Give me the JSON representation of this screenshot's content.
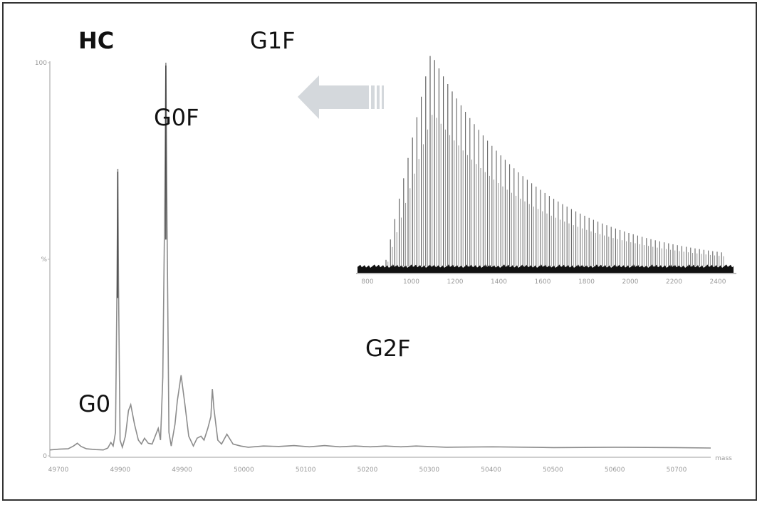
{
  "chart_data": [
    {
      "type": "line",
      "panel": "main",
      "title": "HC",
      "xlim": [
        49700,
        54030
      ],
      "ylim": [
        0,
        100
      ],
      "x_ticks": [
        "49700",
        "49900",
        "49900",
        "50000",
        "50100",
        "50200",
        "50300",
        "50400",
        "50500",
        "50600",
        "50700"
      ],
      "y_ticks": [
        "0",
        "%",
        "100"
      ],
      "x_unit_label": "mass",
      "annotations": [
        "G0",
        "G0F",
        "G1F",
        "G2F"
      ],
      "peaks": [
        {
          "label": "G0",
          "x": 49880,
          "y": 3
        },
        {
          "label": "G0F",
          "x": 50145,
          "y": 73
        },
        {
          "label": "G1F",
          "x": 50460,
          "y": 100
        },
        {
          "label": "G2F",
          "x": 50765,
          "y": 17
        }
      ],
      "series": [
        {
          "x": [
            49700,
            49760,
            49820,
            49855,
            49880,
            49905,
            49940,
            50000,
            50050,
            50080,
            50100,
            50115,
            50130,
            50140,
            50145,
            50150,
            50160,
            50175,
            50195,
            50215,
            50230,
            50255,
            50280,
            50300,
            50320,
            50345,
            50370,
            50395,
            50410,
            50425,
            50440,
            50452,
            50460,
            50468,
            50480,
            50495,
            50520,
            50535,
            50560,
            50585,
            50610,
            50640,
            50665,
            50690,
            50710,
            50735,
            50755,
            50765,
            50775,
            50800,
            50825,
            50860,
            50900,
            50950,
            51000,
            51100,
            51200,
            51300,
            51400,
            51500,
            51600,
            51700,
            51800,
            51900,
            52000,
            52100,
            52300,
            52600,
            53000,
            53400,
            53800,
            54030
          ],
          "y": [
            1.5,
            1.7,
            1.8,
            2.5,
            3.2,
            2.4,
            1.8,
            1.6,
            1.5,
            2.0,
            3.4,
            2.5,
            6.0,
            44.0,
            73.0,
            44.0,
            4.0,
            2.2,
            5.0,
            11.5,
            13.0,
            8.0,
            4.0,
            3.0,
            4.5,
            3.2,
            3.0,
            5.5,
            7.0,
            4.0,
            20.0,
            62.0,
            100.0,
            58.0,
            6.0,
            2.5,
            8.0,
            14.0,
            20.5,
            13.0,
            5.0,
            2.5,
            4.5,
            5.0,
            4.0,
            7.0,
            10.0,
            17.0,
            12.0,
            4.0,
            3.0,
            5.5,
            3.0,
            2.5,
            2.2,
            2.5,
            2.4,
            2.6,
            2.3,
            2.6,
            2.3,
            2.5,
            2.3,
            2.5,
            2.3,
            2.5,
            2.2,
            2.3,
            2.1,
            2.2,
            2.1,
            2.0
          ]
        }
      ]
    },
    {
      "type": "line",
      "panel": "inset",
      "x_ticks": [
        "800",
        "1000",
        "1200",
        "1400",
        "1600",
        "1800",
        "2000",
        "2200",
        "2400"
      ],
      "description_peaks": "charge-state envelope"
    }
  ]
}
